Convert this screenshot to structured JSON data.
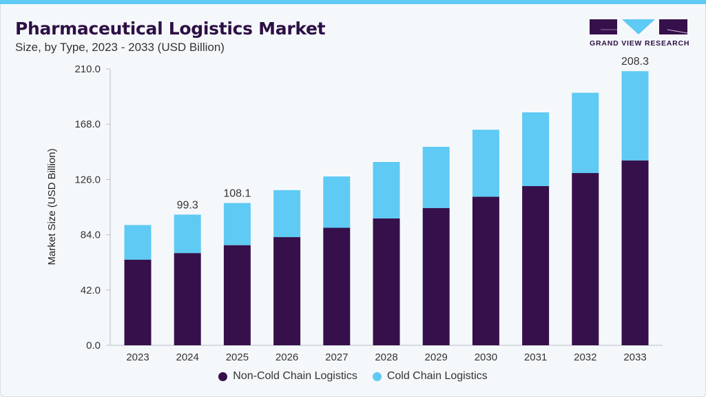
{
  "header": {
    "title": "Pharmaceutical Logistics Market",
    "subtitle": "Size, by Type, 2023 - 2033 (USD Billion)"
  },
  "logo": {
    "text": "GRAND VIEW RESEARCH"
  },
  "colors": {
    "accent": "#5fcaf4",
    "dark": "#36104a"
  },
  "chart_data": {
    "type": "bar",
    "stacked": true,
    "title": "Pharmaceutical Logistics Market",
    "xlabel": "",
    "ylabel": "Market Size (USD Billion)",
    "ylim": [
      0,
      210
    ],
    "yticks": [
      "0.0",
      "42.0",
      "84.0",
      "126.0",
      "168.0",
      "210.0"
    ],
    "grid": false,
    "legend_position": "bottom",
    "categories": [
      "2023",
      "2024",
      "2025",
      "2026",
      "2027",
      "2028",
      "2029",
      "2030",
      "2031",
      "2032",
      "2033"
    ],
    "series": [
      {
        "name": "Non-Cold Chain Logistics",
        "color": "#36104a",
        "values": [
          65.1,
          70.1,
          76.1,
          82.2,
          89.3,
          96.4,
          104.3,
          112.9,
          121.0,
          130.9,
          140.5
        ]
      },
      {
        "name": "Cold Chain Logistics",
        "color": "#5fcaf4",
        "values": [
          26.3,
          29.2,
          32.0,
          35.7,
          39.0,
          42.9,
          46.5,
          50.9,
          56.0,
          61.0,
          67.8
        ]
      }
    ],
    "data_labels": {
      "2024": "99.3",
      "2025": "108.1",
      "2033": "208.3"
    }
  }
}
